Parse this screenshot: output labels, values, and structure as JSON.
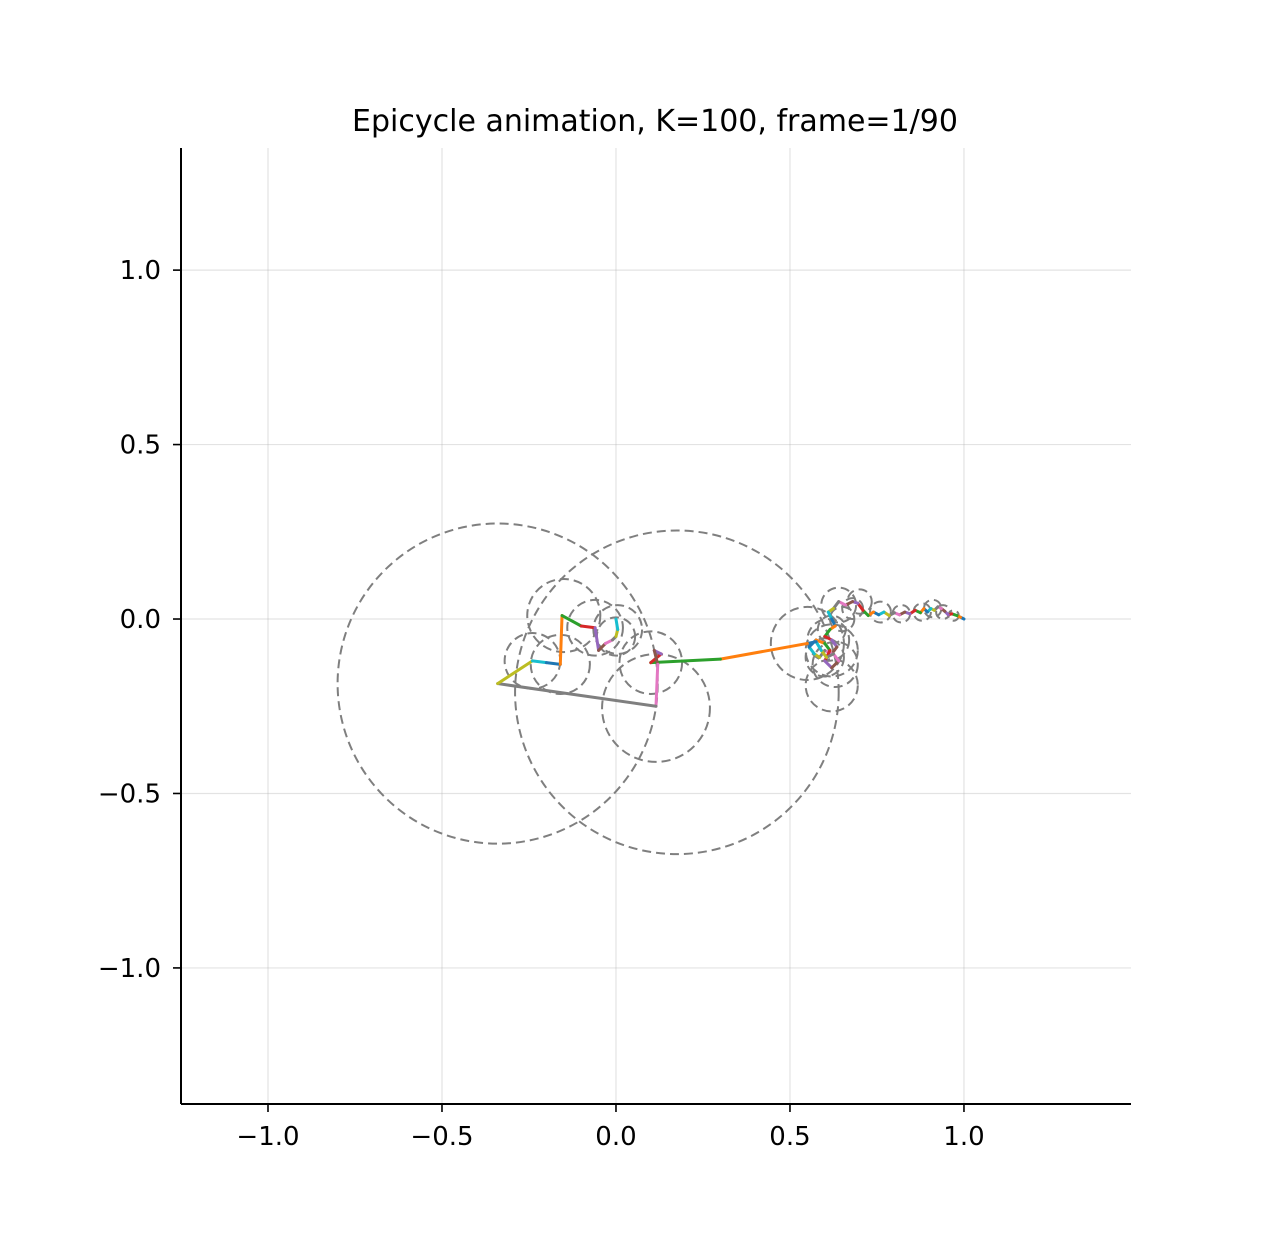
{
  "chart_data": {
    "type": "line",
    "title": "Epicycle animation, K=100, frame=1/90",
    "xlabel": "",
    "ylabel": "",
    "xlim": [
      -1.25,
      1.48
    ],
    "ylim": [
      -1.39,
      1.35
    ],
    "aspect": "equal",
    "grid": true,
    "legend": "none",
    "x_ticks": [
      -1.0,
      -0.5,
      0.0,
      0.5,
      1.0
    ],
    "x_tick_labels": [
      "−1.0",
      "−0.5",
      "0.0",
      "0.5",
      "1.0"
    ],
    "y_ticks": [
      1.0,
      0.5,
      0.0,
      -0.5,
      -1.0
    ],
    "y_tick_labels": [
      "1.0",
      "0.5",
      "0.0",
      "−0.5",
      "−1.0"
    ],
    "color_cycle": [
      "#1f77b4",
      "#ff7f0e",
      "#2ca02c",
      "#d62728",
      "#9467bd",
      "#8c564b",
      "#e377c2",
      "#7f7f7f",
      "#bcbd22",
      "#17becf"
    ],
    "circle_color": "#7f7f7f",
    "epicycle_chain": [
      [
        1.0,
        0.0
      ],
      [
        0.99,
        0.005
      ],
      [
        0.98,
        0.01
      ],
      [
        0.965,
        0.015
      ],
      [
        0.955,
        0.012
      ],
      [
        0.945,
        0.022
      ],
      [
        0.935,
        0.03
      ],
      [
        0.925,
        0.035
      ],
      [
        0.915,
        0.025
      ],
      [
        0.905,
        0.03
      ],
      [
        0.895,
        0.02
      ],
      [
        0.885,
        0.03
      ],
      [
        0.875,
        0.018
      ],
      [
        0.86,
        0.025
      ],
      [
        0.845,
        0.015
      ],
      [
        0.83,
        0.02
      ],
      [
        0.815,
        0.012
      ],
      [
        0.8,
        0.018
      ],
      [
        0.785,
        0.01
      ],
      [
        0.77,
        0.02
      ],
      [
        0.755,
        0.012
      ],
      [
        0.74,
        0.02
      ],
      [
        0.725,
        0.01
      ],
      [
        0.71,
        0.025
      ],
      [
        0.695,
        0.045
      ],
      [
        0.68,
        0.05
      ],
      [
        0.66,
        0.04
      ],
      [
        0.64,
        0.05
      ],
      [
        0.625,
        0.03
      ],
      [
        0.61,
        0.02
      ],
      [
        0.62,
        0.0
      ],
      [
        0.63,
        -0.02
      ],
      [
        0.615,
        -0.03
      ],
      [
        0.6,
        -0.05
      ],
      [
        0.62,
        -0.06
      ],
      [
        0.635,
        -0.08
      ],
      [
        0.62,
        -0.1
      ],
      [
        0.6,
        -0.09
      ],
      [
        0.585,
        -0.11
      ],
      [
        0.57,
        -0.1
      ],
      [
        0.555,
        -0.08
      ],
      [
        0.575,
        -0.06
      ],
      [
        0.6,
        -0.07
      ],
      [
        0.615,
        -0.09
      ],
      [
        0.6,
        -0.12
      ],
      [
        0.62,
        -0.14
      ],
      [
        0.64,
        -0.12
      ],
      [
        0.625,
        -0.1
      ],
      [
        0.605,
        -0.11
      ],
      [
        0.59,
        -0.09
      ],
      [
        0.575,
        -0.065
      ],
      [
        0.55,
        -0.07
      ],
      [
        0.3,
        -0.115
      ],
      [
        0.1,
        -0.125
      ],
      [
        0.13,
        -0.1
      ],
      [
        0.11,
        -0.09
      ],
      [
        0.12,
        -0.13
      ],
      [
        0.115,
        -0.25
      ],
      [
        -0.34,
        -0.185
      ],
      [
        -0.24,
        -0.12
      ],
      [
        -0.2,
        -0.125
      ],
      [
        -0.16,
        -0.13
      ],
      [
        -0.155,
        0.01
      ],
      [
        -0.1,
        -0.02
      ],
      [
        -0.06,
        -0.025
      ],
      [
        -0.05,
        -0.09
      ],
      [
        -0.03,
        -0.07
      ],
      [
        -0.01,
        -0.06
      ],
      [
        0.0,
        -0.05
      ],
      [
        0.005,
        -0.03
      ],
      [
        0.0,
        0.0
      ]
    ],
    "epicircles": [
      {
        "x": -0.34,
        "y": -0.185,
        "r": 0.46
      },
      {
        "x": 0.175,
        "y": -0.21,
        "r": 0.465
      },
      {
        "x": 0.115,
        "y": -0.255,
        "r": 0.155
      },
      {
        "x": -0.15,
        "y": 0.01,
        "r": 0.105
      },
      {
        "x": -0.24,
        "y": -0.12,
        "r": 0.08
      },
      {
        "x": -0.16,
        "y": -0.13,
        "r": 0.085
      },
      {
        "x": -0.06,
        "y": -0.025,
        "r": 0.08
      },
      {
        "x": 0.005,
        "y": -0.03,
        "r": 0.07
      },
      {
        "x": 0.0,
        "y": -0.05,
        "r": 0.055
      },
      {
        "x": 0.1,
        "y": -0.125,
        "r": 0.09
      },
      {
        "x": 0.55,
        "y": -0.07,
        "r": 0.105
      },
      {
        "x": 0.62,
        "y": -0.09,
        "r": 0.075
      },
      {
        "x": 0.63,
        "y": -0.13,
        "r": 0.065
      },
      {
        "x": 0.62,
        "y": -0.19,
        "r": 0.075
      },
      {
        "x": 0.61,
        "y": -0.06,
        "r": 0.06
      },
      {
        "x": 0.6,
        "y": -0.11,
        "r": 0.055
      },
      {
        "x": 0.64,
        "y": 0.04,
        "r": 0.05
      },
      {
        "x": 0.7,
        "y": 0.05,
        "r": 0.035
      },
      {
        "x": 0.76,
        "y": 0.02,
        "r": 0.03
      },
      {
        "x": 0.82,
        "y": 0.015,
        "r": 0.025
      },
      {
        "x": 0.88,
        "y": 0.02,
        "r": 0.025
      },
      {
        "x": 0.91,
        "y": 0.03,
        "r": 0.025
      },
      {
        "x": 0.94,
        "y": 0.02,
        "r": 0.02
      },
      {
        "x": 0.97,
        "y": 0.01,
        "r": 0.015
      },
      {
        "x": 0.62,
        "y": -0.03,
        "r": 0.04
      },
      {
        "x": 0.65,
        "y": 0.0,
        "r": 0.035
      },
      {
        "x": 0.68,
        "y": 0.03,
        "r": 0.03
      }
    ]
  }
}
